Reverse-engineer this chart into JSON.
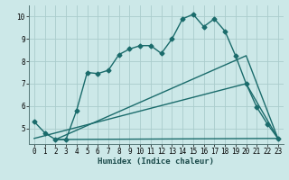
{
  "xlabel": "Humidex (Indice chaleur)",
  "background_color": "#cce8e8",
  "grid_color": "#aacccc",
  "line_color": "#1a6b6b",
  "xlim": [
    -0.5,
    23.5
  ],
  "ylim": [
    4.3,
    10.5
  ],
  "xticks": [
    0,
    1,
    2,
    3,
    4,
    5,
    6,
    7,
    8,
    9,
    10,
    11,
    12,
    13,
    14,
    15,
    16,
    17,
    18,
    19,
    20,
    21,
    22,
    23
  ],
  "yticks": [
    5,
    6,
    7,
    8,
    9,
    10
  ],
  "line1_x": [
    0,
    1,
    2,
    3,
    4,
    5,
    6,
    7,
    8,
    9,
    10,
    11,
    12,
    13,
    14,
    15,
    16,
    17,
    18,
    19,
    20,
    21,
    22,
    23
  ],
  "line1_y": [
    5.3,
    4.8,
    4.5,
    4.5,
    5.8,
    7.5,
    7.45,
    7.6,
    8.3,
    8.55,
    8.7,
    8.7,
    8.35,
    9.0,
    9.9,
    10.1,
    9.55,
    9.9,
    9.35,
    8.25,
    7.0,
    5.95,
    5.2,
    4.55
  ],
  "line2_x": [
    0,
    20,
    23
  ],
  "line2_y": [
    4.55,
    7.0,
    4.55
  ],
  "line3_x": [
    2,
    20,
    23
  ],
  "line3_y": [
    4.5,
    8.25,
    4.55
  ],
  "line4_x": [
    2,
    23
  ],
  "line4_y": [
    4.5,
    4.55
  ],
  "marker_style": "D",
  "marker_size": 2.5,
  "linewidth": 1.0
}
